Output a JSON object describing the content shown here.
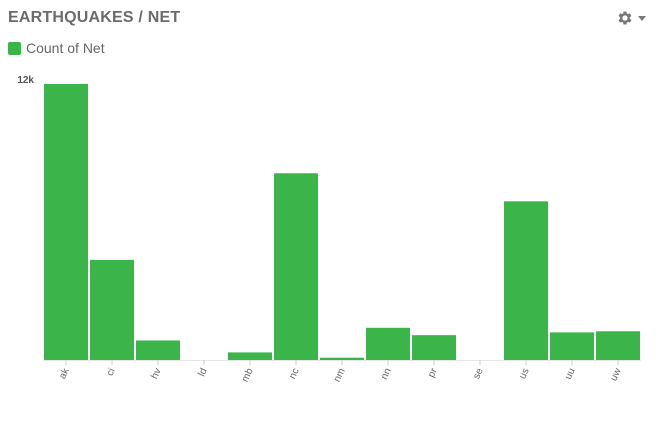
{
  "header": {
    "title": "EARTHQUAKES / NET",
    "settings_icon": "gear-icon"
  },
  "legend": {
    "label": "Count of Net",
    "color": "#3bb54a"
  },
  "chart_data": {
    "type": "bar",
    "categories": [
      "ak",
      "ci",
      "hv",
      "ld",
      "mb",
      "nc",
      "nm",
      "nn",
      "pr",
      "se",
      "us",
      "uu",
      "uw"
    ],
    "series": [
      {
        "name": "Count of Net",
        "values": [
          12000,
          4350,
          850,
          0,
          330,
          8120,
          100,
          1400,
          1080,
          0,
          6900,
          1200,
          1250
        ]
      }
    ],
    "ylim": [
      0,
      12000
    ],
    "y_tick_labels": [
      "12k"
    ],
    "bar_color": "#3bb54a",
    "grid": false,
    "legend_position": "top-left"
  }
}
